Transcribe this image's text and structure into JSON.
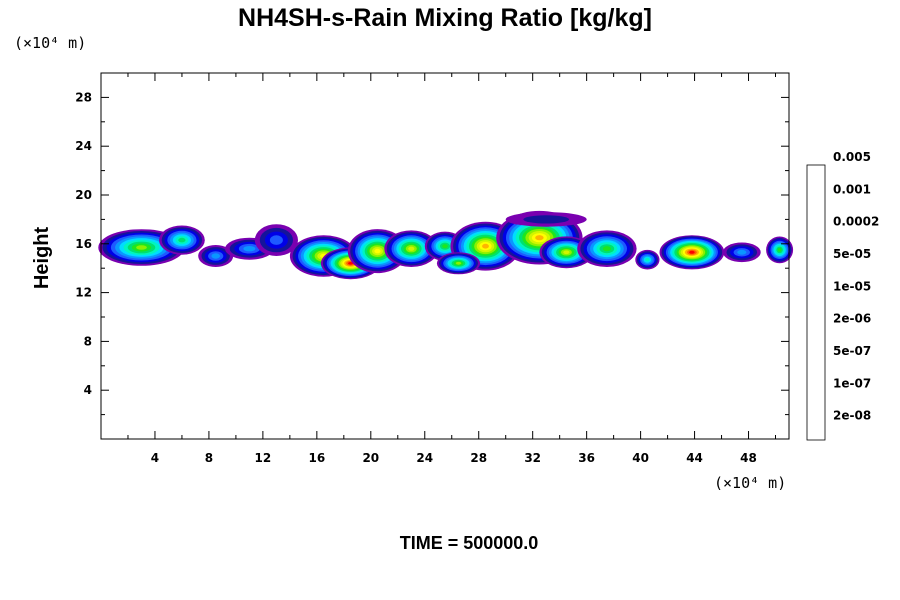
{
  "chart_data": {
    "type": "heatmap",
    "title": "NH4SH-s-Rain Mixing Ratio [kg/kg]",
    "ylabel": "Height",
    "x_unit": "(×10⁴ m)",
    "y_unit": "(×10⁴ m)",
    "footer": "TIME = 500000.0",
    "xlim": [
      0,
      51
    ],
    "ylim": [
      0,
      30
    ],
    "x_ticks": [
      4,
      8,
      12,
      16,
      20,
      24,
      28,
      32,
      36,
      40,
      44,
      48
    ],
    "y_ticks": [
      4,
      8,
      12,
      16,
      20,
      24,
      28
    ],
    "colorbar": {
      "colors": [
        "#7a00b0",
        "#14149a",
        "#0000e6",
        "#1e5aff",
        "#0a96ff",
        "#00dcff",
        "#00f5c0",
        "#00e070",
        "#1ee61e",
        "#8cf000",
        "#d2f500",
        "#ffff00",
        "#ffb400",
        "#ff6400",
        "#ff0000",
        "#ff5050",
        "#ff9e9e"
      ],
      "labels": [
        "2e-08",
        "1e-07",
        "5e-07",
        "2e-06",
        "1e-05",
        "5e-05",
        "0.0002",
        "0.001",
        "0.005"
      ]
    },
    "field": {
      "height_band_center": 15.2,
      "blobs": [
        {
          "x": 3.0,
          "y": 15.7,
          "rx": 3.2,
          "ry": 1.5,
          "level": 9
        },
        {
          "x": 6.0,
          "y": 16.3,
          "rx": 1.7,
          "ry": 1.2,
          "level": 7
        },
        {
          "x": 8.5,
          "y": 15.0,
          "rx": 1.3,
          "ry": 0.9,
          "level": 4
        },
        {
          "x": 11.0,
          "y": 15.6,
          "rx": 1.8,
          "ry": 0.9,
          "level": 4
        },
        {
          "x": 13.0,
          "y": 16.3,
          "rx": 1.6,
          "ry": 1.3,
          "level": 3
        },
        {
          "x": 16.5,
          "y": 15.0,
          "rx": 2.5,
          "ry": 1.7,
          "level": 11
        },
        {
          "x": 18.5,
          "y": 14.4,
          "rx": 2.2,
          "ry": 1.3,
          "level": 14
        },
        {
          "x": 20.5,
          "y": 15.4,
          "rx": 2.2,
          "ry": 1.8,
          "level": 11
        },
        {
          "x": 23.0,
          "y": 15.6,
          "rx": 2.0,
          "ry": 1.5,
          "level": 10
        },
        {
          "x": 25.5,
          "y": 15.8,
          "rx": 1.5,
          "ry": 1.2,
          "level": 8
        },
        {
          "x": 28.5,
          "y": 15.8,
          "rx": 2.6,
          "ry": 2.0,
          "level": 12
        },
        {
          "x": 32.5,
          "y": 16.5,
          "rx": 3.2,
          "ry": 2.2,
          "level": 12
        },
        {
          "x": 34.5,
          "y": 15.3,
          "rx": 2.0,
          "ry": 1.3,
          "level": 10
        },
        {
          "x": 37.5,
          "y": 15.6,
          "rx": 2.2,
          "ry": 1.5,
          "level": 8
        },
        {
          "x": 40.5,
          "y": 14.7,
          "rx": 0.9,
          "ry": 0.8,
          "level": 6
        },
        {
          "x": 43.8,
          "y": 15.3,
          "rx": 2.4,
          "ry": 1.4,
          "level": 14
        },
        {
          "x": 47.5,
          "y": 15.3,
          "rx": 1.4,
          "ry": 0.8,
          "level": 4
        },
        {
          "x": 50.3,
          "y": 15.5,
          "rx": 1.0,
          "ry": 1.1,
          "level": 8
        },
        {
          "x": 33.0,
          "y": 18.0,
          "rx": 3.0,
          "ry": 0.6,
          "level": 1
        },
        {
          "x": 26.5,
          "y": 14.4,
          "rx": 1.6,
          "ry": 0.9,
          "level": 9
        }
      ]
    }
  }
}
